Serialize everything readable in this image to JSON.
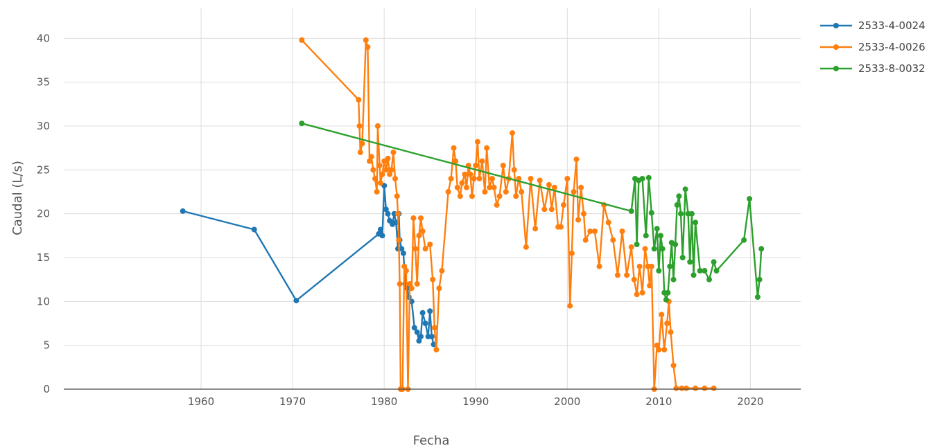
{
  "chart_data": {
    "type": "line",
    "xlabel": "Fecha",
    "ylabel": "Caudal (L/s)",
    "xlim": [
      1945,
      2025.5
    ],
    "ylim": [
      0,
      42
    ],
    "x_ticks": [
      1960,
      1970,
      1980,
      1990,
      2000,
      2010,
      2020
    ],
    "y_ticks": [
      0,
      5,
      10,
      15,
      20,
      25,
      30,
      35,
      40
    ],
    "grid": true,
    "legend_position": "top-right",
    "series": [
      {
        "name": "2533-4-0024",
        "color": "#1f77b4",
        "x": [
          1958.0,
          1965.8,
          1970.4,
          1979.4,
          1979.6,
          1979.8,
          1980.0,
          1980.2,
          1980.4,
          1980.6,
          1980.9,
          1981.1,
          1981.3,
          1981.5,
          1981.6,
          1981.7,
          1981.9,
          1982.1,
          1982.3,
          1982.5,
          1982.7,
          1983.0,
          1983.3,
          1983.6,
          1983.8,
          1984.0,
          1984.2,
          1984.5,
          1984.8,
          1985.0,
          1985.2,
          1985.4
        ],
        "y": [
          20.3,
          18.2,
          10.1,
          17.7,
          18.2,
          17.5,
          23.2,
          20.5,
          20.0,
          19.2,
          18.8,
          20.0,
          19.0,
          16.0,
          20.0,
          17.0,
          16.0,
          15.5,
          12.0,
          11.5,
          10.5,
          10.0,
          7.0,
          6.5,
          5.5,
          6.0,
          8.7,
          7.5,
          6.0,
          8.9,
          6.0,
          5.1
        ]
      },
      {
        "name": "2533-4-0026",
        "color": "#ff7f0e",
        "x": [
          1971.0,
          1977.2,
          1977.3,
          1977.4,
          1977.6,
          1978.0,
          1978.2,
          1978.4,
          1978.6,
          1978.8,
          1979.0,
          1979.2,
          1979.3,
          1979.5,
          1979.6,
          1979.8,
          1980.0,
          1980.2,
          1980.4,
          1980.6,
          1980.8,
          1981.0,
          1981.2,
          1981.4,
          1981.5,
          1981.6,
          1981.7,
          1981.8,
          1982.0,
          1982.2,
          1982.4,
          1982.6,
          1982.8,
          1983.0,
          1983.2,
          1983.4,
          1983.6,
          1983.8,
          1984.0,
          1984.2,
          1984.5,
          1985.0,
          1985.3,
          1985.5,
          1985.7,
          1986.0,
          1986.3,
          1987.0,
          1987.3,
          1987.6,
          1987.8,
          1988.0,
          1988.3,
          1988.5,
          1988.8,
          1989.0,
          1989.2,
          1989.4,
          1989.6,
          1989.8,
          1990.0,
          1990.2,
          1990.4,
          1990.7,
          1991.0,
          1991.2,
          1991.5,
          1991.8,
          1992.0,
          1992.3,
          1992.6,
          1993.0,
          1993.3,
          1993.6,
          1994.0,
          1994.2,
          1994.4,
          1994.7,
          1995.0,
          1995.5,
          1996.0,
          1996.5,
          1997.0,
          1997.5,
          1998.0,
          1998.3,
          1998.6,
          1999.0,
          1999.3,
          1999.6,
          2000.0,
          2000.3,
          2000.5,
          2000.7,
          2001.0,
          2001.2,
          2001.5,
          2001.8,
          2002.0,
          2002.5,
          2003.0,
          2003.5,
          2004.0,
          2004.5,
          2005.0,
          2005.5,
          2006.0,
          2006.5,
          2007.0,
          2007.3,
          2007.6,
          2007.9,
          2008.2,
          2008.5,
          2008.8,
          2009.0,
          2009.2,
          2009.5,
          2009.8,
          2010.0,
          2010.3,
          2010.6,
          2010.9,
          2011.1,
          2011.3,
          2011.6,
          2011.9,
          2012.5,
          2013.0,
          2014.0,
          2015.0,
          2016.0
        ],
        "y": [
          39.8,
          33.0,
          30.0,
          27.0,
          28.0,
          39.8,
          39.0,
          26.0,
          26.5,
          25.0,
          24.0,
          22.5,
          30.0,
          25.5,
          23.5,
          24.5,
          26.0,
          25.0,
          26.3,
          24.5,
          25.0,
          27.0,
          24.0,
          22.0,
          20.0,
          17.0,
          12.0,
          0.0,
          0.0,
          14.0,
          13.5,
          0.0,
          12.0,
          11.5,
          19.5,
          16.0,
          12.0,
          17.5,
          19.5,
          18.0,
          16.0,
          16.5,
          12.5,
          7.0,
          4.5,
          11.5,
          13.5,
          22.5,
          24.0,
          27.5,
          26.0,
          23.0,
          22.0,
          23.5,
          24.5,
          23.0,
          25.5,
          24.5,
          22.0,
          24.0,
          25.5,
          28.2,
          24.0,
          26.0,
          22.5,
          27.5,
          23.0,
          24.0,
          23.0,
          21.0,
          22.0,
          25.5,
          22.5,
          24.0,
          29.2,
          25.0,
          22.0,
          24.0,
          22.5,
          16.2,
          24.0,
          18.3,
          23.8,
          20.5,
          23.3,
          20.5,
          23.0,
          18.5,
          18.5,
          21.0,
          24.0,
          9.5,
          15.5,
          22.5,
          26.2,
          19.3,
          23.0,
          20.0,
          17.0,
          18.0,
          18.0,
          14.0,
          21.0,
          19.0,
          17.0,
          13.0,
          18.0,
          13.0,
          16.2,
          12.5,
          10.8,
          14.0,
          11.0,
          16.0,
          14.0,
          11.8,
          14.0,
          0.0,
          5.0,
          4.5,
          8.5,
          4.5,
          7.5,
          10.0,
          6.5,
          2.7,
          0.1,
          0.1,
          0.1,
          0.1,
          0.1,
          0.1
        ]
      },
      {
        "name": "2533-8-0032",
        "color": "#2ca02c",
        "x": [
          1971.0,
          2007.0,
          2007.4,
          2007.6,
          2007.8,
          2008.2,
          2008.6,
          2008.9,
          2009.2,
          2009.5,
          2009.8,
          2010.0,
          2010.2,
          2010.4,
          2010.6,
          2010.8,
          2011.0,
          2011.2,
          2011.4,
          2011.6,
          2011.8,
          2012.0,
          2012.2,
          2012.4,
          2012.6,
          2012.9,
          2013.2,
          2013.4,
          2013.6,
          2013.8,
          2014.0,
          2014.5,
          2015.0,
          2015.5,
          2016.0,
          2016.3,
          2019.3,
          2019.9,
          2020.8,
          2021.0,
          2021.2
        ],
        "y": [
          30.3,
          20.3,
          24.0,
          16.5,
          23.8,
          24.0,
          17.5,
          24.1,
          20.1,
          16.0,
          18.3,
          13.5,
          17.5,
          16.0,
          11.0,
          10.2,
          11.0,
          14.0,
          16.7,
          12.5,
          16.5,
          21.0,
          22.0,
          20.0,
          15.0,
          22.8,
          20.0,
          14.5,
          20.0,
          13.0,
          19.0,
          13.5,
          13.5,
          12.5,
          14.5,
          13.5,
          17.0,
          21.7,
          10.5,
          12.5,
          16.0
        ]
      }
    ]
  }
}
